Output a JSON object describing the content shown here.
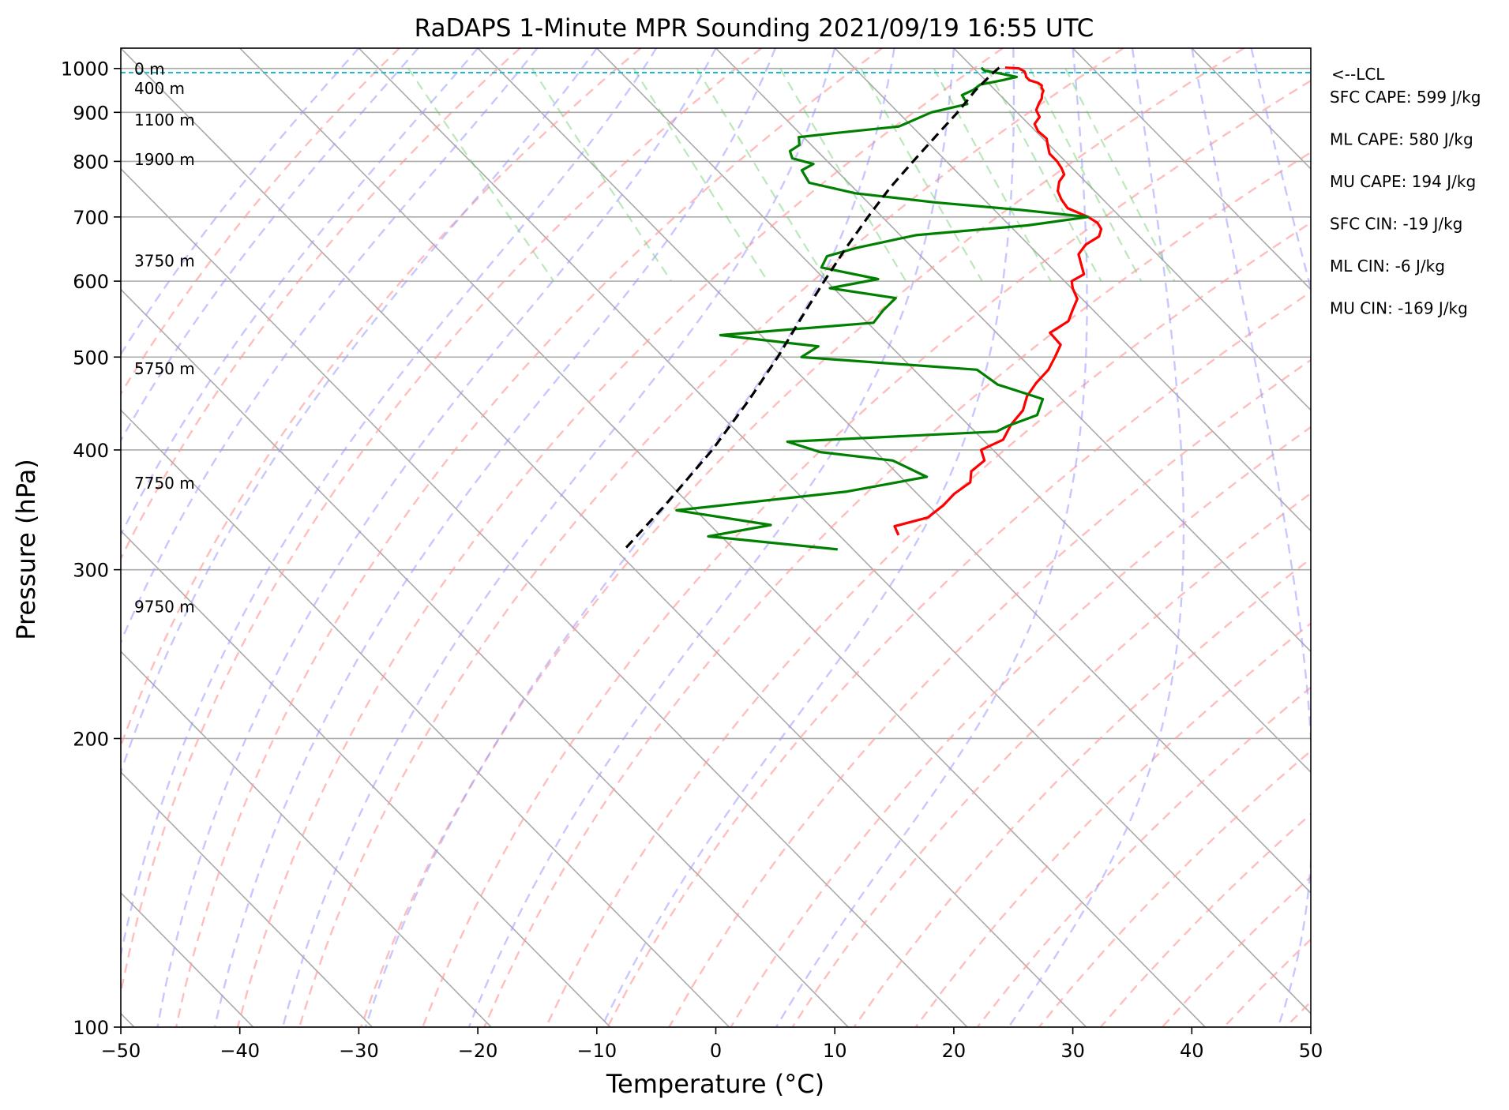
{
  "chart_data": {
    "type": "line",
    "chart_kind": "skew-t log-p sounding",
    "title": "RaDAPS 1-Minute MPR Sounding 2021/09/19 16:55 UTC",
    "xlabel": "Temperature (°C)",
    "ylabel": "Pressure (hPa)",
    "xlim": [
      -50,
      50
    ],
    "ylim": [
      1050,
      100
    ],
    "y_scale": "log",
    "x_ticks": [
      "−50",
      "−40",
      "−30",
      "−20",
      "−10",
      "0",
      "10",
      "20",
      "30",
      "40",
      "50"
    ],
    "y_ticks": [
      "100",
      "200",
      "300",
      "400",
      "500",
      "600",
      "700",
      "800",
      "900",
      "1000"
    ],
    "grid": true,
    "series": [
      {
        "role": "temperature",
        "color": "#ff0000",
        "points": [
          [
            1002,
            22.7
          ],
          [
            1000,
            23.8
          ],
          [
            993,
            24.0
          ],
          [
            987,
            23.9
          ],
          [
            980,
            23.7
          ],
          [
            977,
            23.7
          ],
          [
            972,
            23.7
          ],
          [
            966,
            24.2
          ],
          [
            960,
            24.3
          ],
          [
            955,
            24.1
          ],
          [
            948,
            24.0
          ],
          [
            940,
            23.6
          ],
          [
            930,
            23.2
          ],
          [
            920,
            22.6
          ],
          [
            905,
            21.8
          ],
          [
            890,
            21.5
          ],
          [
            875,
            20.5
          ],
          [
            860,
            20.2
          ],
          [
            845,
            20.3
          ],
          [
            830,
            19.8
          ],
          [
            815,
            19.3
          ],
          [
            800,
            19.3
          ],
          [
            787,
            19.1
          ],
          [
            775,
            18.8
          ],
          [
            762,
            17.8
          ],
          [
            745,
            16.9
          ],
          [
            730,
            16.5
          ],
          [
            715,
            16.3
          ],
          [
            700,
            17.3
          ],
          [
            690,
            17.6
          ],
          [
            680,
            17.4
          ],
          [
            668,
            16.6
          ],
          [
            655,
            14.8
          ],
          [
            640,
            13.4
          ],
          [
            625,
            12.8
          ],
          [
            610,
            12.2
          ],
          [
            600,
            10.6
          ],
          [
            590,
            10.1
          ],
          [
            575,
            9.6
          ],
          [
            560,
            8.3
          ],
          [
            545,
            7.0
          ],
          [
            530,
            4.5
          ],
          [
            515,
            4.4
          ],
          [
            500,
            2.9
          ],
          [
            485,
            1.3
          ],
          [
            470,
            -0.8
          ],
          [
            455,
            -2.7
          ],
          [
            440,
            -4.2
          ],
          [
            425,
            -6.4
          ],
          [
            410,
            -8.3
          ],
          [
            400,
            -11.0
          ],
          [
            390,
            -11.6
          ],
          [
            380,
            -13.6
          ],
          [
            370,
            -14.6
          ],
          [
            360,
            -16.9
          ],
          [
            350,
            -18.8
          ],
          [
            340,
            -21.1
          ],
          [
            333,
            -24.6
          ],
          [
            326,
            -25.0
          ]
        ]
      },
      {
        "role": "dewpoint",
        "color": "#008000",
        "points": [
          [
            1002,
            20.7
          ],
          [
            995,
            20.7
          ],
          [
            990,
            21.5
          ],
          [
            980,
            22.9
          ],
          [
            972,
            21.4
          ],
          [
            962,
            19.2
          ],
          [
            950,
            18.2
          ],
          [
            938,
            16.8
          ],
          [
            918,
            16.5
          ],
          [
            900,
            12.8
          ],
          [
            870,
            8.9
          ],
          [
            856,
            2.9
          ],
          [
            848,
            -0.4
          ],
          [
            832,
            -1.0
          ],
          [
            820,
            -2.3
          ],
          [
            806,
            -2.7
          ],
          [
            795,
            -1.4
          ],
          [
            783,
            -2.9
          ],
          [
            760,
            -3.3
          ],
          [
            741,
            -0.3
          ],
          [
            725,
            5.6
          ],
          [
            712,
            12.2
          ],
          [
            700,
            17.3
          ],
          [
            686,
            11.5
          ],
          [
            670,
            1.3
          ],
          [
            650,
            -4.7
          ],
          [
            637,
            -7.9
          ],
          [
            620,
            -9.3
          ],
          [
            603,
            -5.5
          ],
          [
            590,
            -10.3
          ],
          [
            576,
            -5.6
          ],
          [
            559,
            -7.7
          ],
          [
            543,
            -9.5
          ],
          [
            527,
            -23.4
          ],
          [
            513,
            -16.1
          ],
          [
            500,
            -18.4
          ],
          [
            485,
            -4.7
          ],
          [
            468,
            -4.2
          ],
          [
            452,
            -1.6
          ],
          [
            435,
            -3.4
          ],
          [
            424,
            -6.7
          ],
          [
            418,
            -8.2
          ],
          [
            408,
            -26.6
          ],
          [
            398,
            -24.7
          ],
          [
            390,
            -19.3
          ],
          [
            375,
            -17.8
          ],
          [
            362,
            -25.7
          ],
          [
            346,
            -41.6
          ],
          [
            334,
            -34.9
          ],
          [
            325,
            -41.1
          ],
          [
            315,
            -31.3
          ]
        ]
      },
      {
        "role": "parcel",
        "color": "#000000",
        "style": "dashed",
        "points": [
          [
            1002,
            22.2
          ],
          [
            990,
            21.3
          ],
          [
            950,
            18.4
          ],
          [
            900,
            15.0
          ],
          [
            850,
            11.2
          ],
          [
            800,
            7.2
          ],
          [
            750,
            3.0
          ],
          [
            700,
            -1.2
          ],
          [
            650,
            -5.6
          ],
          [
            600,
            -10.2
          ],
          [
            550,
            -15.1
          ],
          [
            500,
            -20.4
          ],
          [
            450,
            -26.5
          ],
          [
            400,
            -33.6
          ],
          [
            350,
            -42.2
          ],
          [
            316,
            -49.0
          ]
        ]
      }
    ],
    "height_labels": [
      {
        "label": "0 m",
        "p": 1000
      },
      {
        "label": "400 m",
        "p": 955
      },
      {
        "label": "1100 m",
        "p": 885
      },
      {
        "label": "1900 m",
        "p": 805
      },
      {
        "label": "3750 m",
        "p": 631
      },
      {
        "label": "5750 m",
        "p": 487
      },
      {
        "label": "7750 m",
        "p": 370
      },
      {
        "label": "9750 m",
        "p": 275
      }
    ],
    "lcl": {
      "p": 990,
      "label": "<--LCL"
    },
    "indices": [
      "SFC CAPE: 599 J/kg",
      "ML CAPE: 580 J/kg",
      "MU CAPE: 194 J/kg",
      "SFC CIN: -19 J/kg",
      "ML CIN: -6 J/kg",
      "MU CIN: -169 J/kg"
    ],
    "isotherm_color": "#000000",
    "dry_adiabat_color": "#ff0000",
    "moist_adiabat_color": "#0000ff",
    "mixing_ratio_color": "#008000",
    "lcl_line_color": "#17becf"
  }
}
